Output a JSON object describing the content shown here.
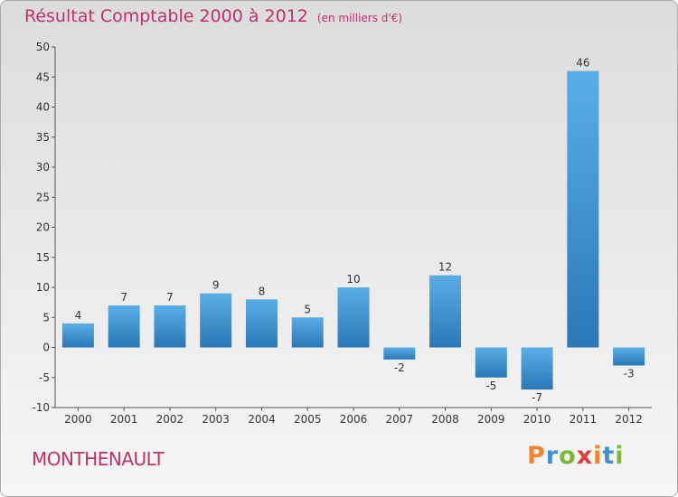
{
  "header": {
    "title": "Résultat Comptable 2000 à 2012",
    "subtitle": "(en milliers d'€)"
  },
  "footer": {
    "commune": "MONTHENAULT",
    "logo_text": "Proxiti"
  },
  "colors": {
    "title": "#c0306a",
    "bar_light": "#5aaee6",
    "bar_dark": "#2a78b6",
    "logo_letters": [
      "#f0842c",
      "#3d8fd6",
      "#7cb83a",
      "#e23b3b",
      "#f0842c",
      "#3d8fd6",
      "#7cb83a"
    ]
  },
  "chart_data": {
    "type": "bar",
    "categories": [
      "2000",
      "2001",
      "2002",
      "2003",
      "2004",
      "2005",
      "2006",
      "2007",
      "2008",
      "2009",
      "2010",
      "2011",
      "2012"
    ],
    "values": [
      4,
      7,
      7,
      9,
      8,
      5,
      10,
      -2,
      12,
      -5,
      -7,
      46,
      -3
    ],
    "data_labels": [
      "4",
      "7",
      "7",
      "9",
      "8",
      "5",
      "10",
      "-2",
      "12",
      "-5",
      "-7",
      "46",
      "-3"
    ],
    "yticks": [
      "-10",
      "-5",
      "0",
      "5",
      "10",
      "15",
      "20",
      "25",
      "30",
      "35",
      "40",
      "45",
      "50"
    ],
    "ylim": [
      -10,
      50
    ],
    "grid": false
  }
}
